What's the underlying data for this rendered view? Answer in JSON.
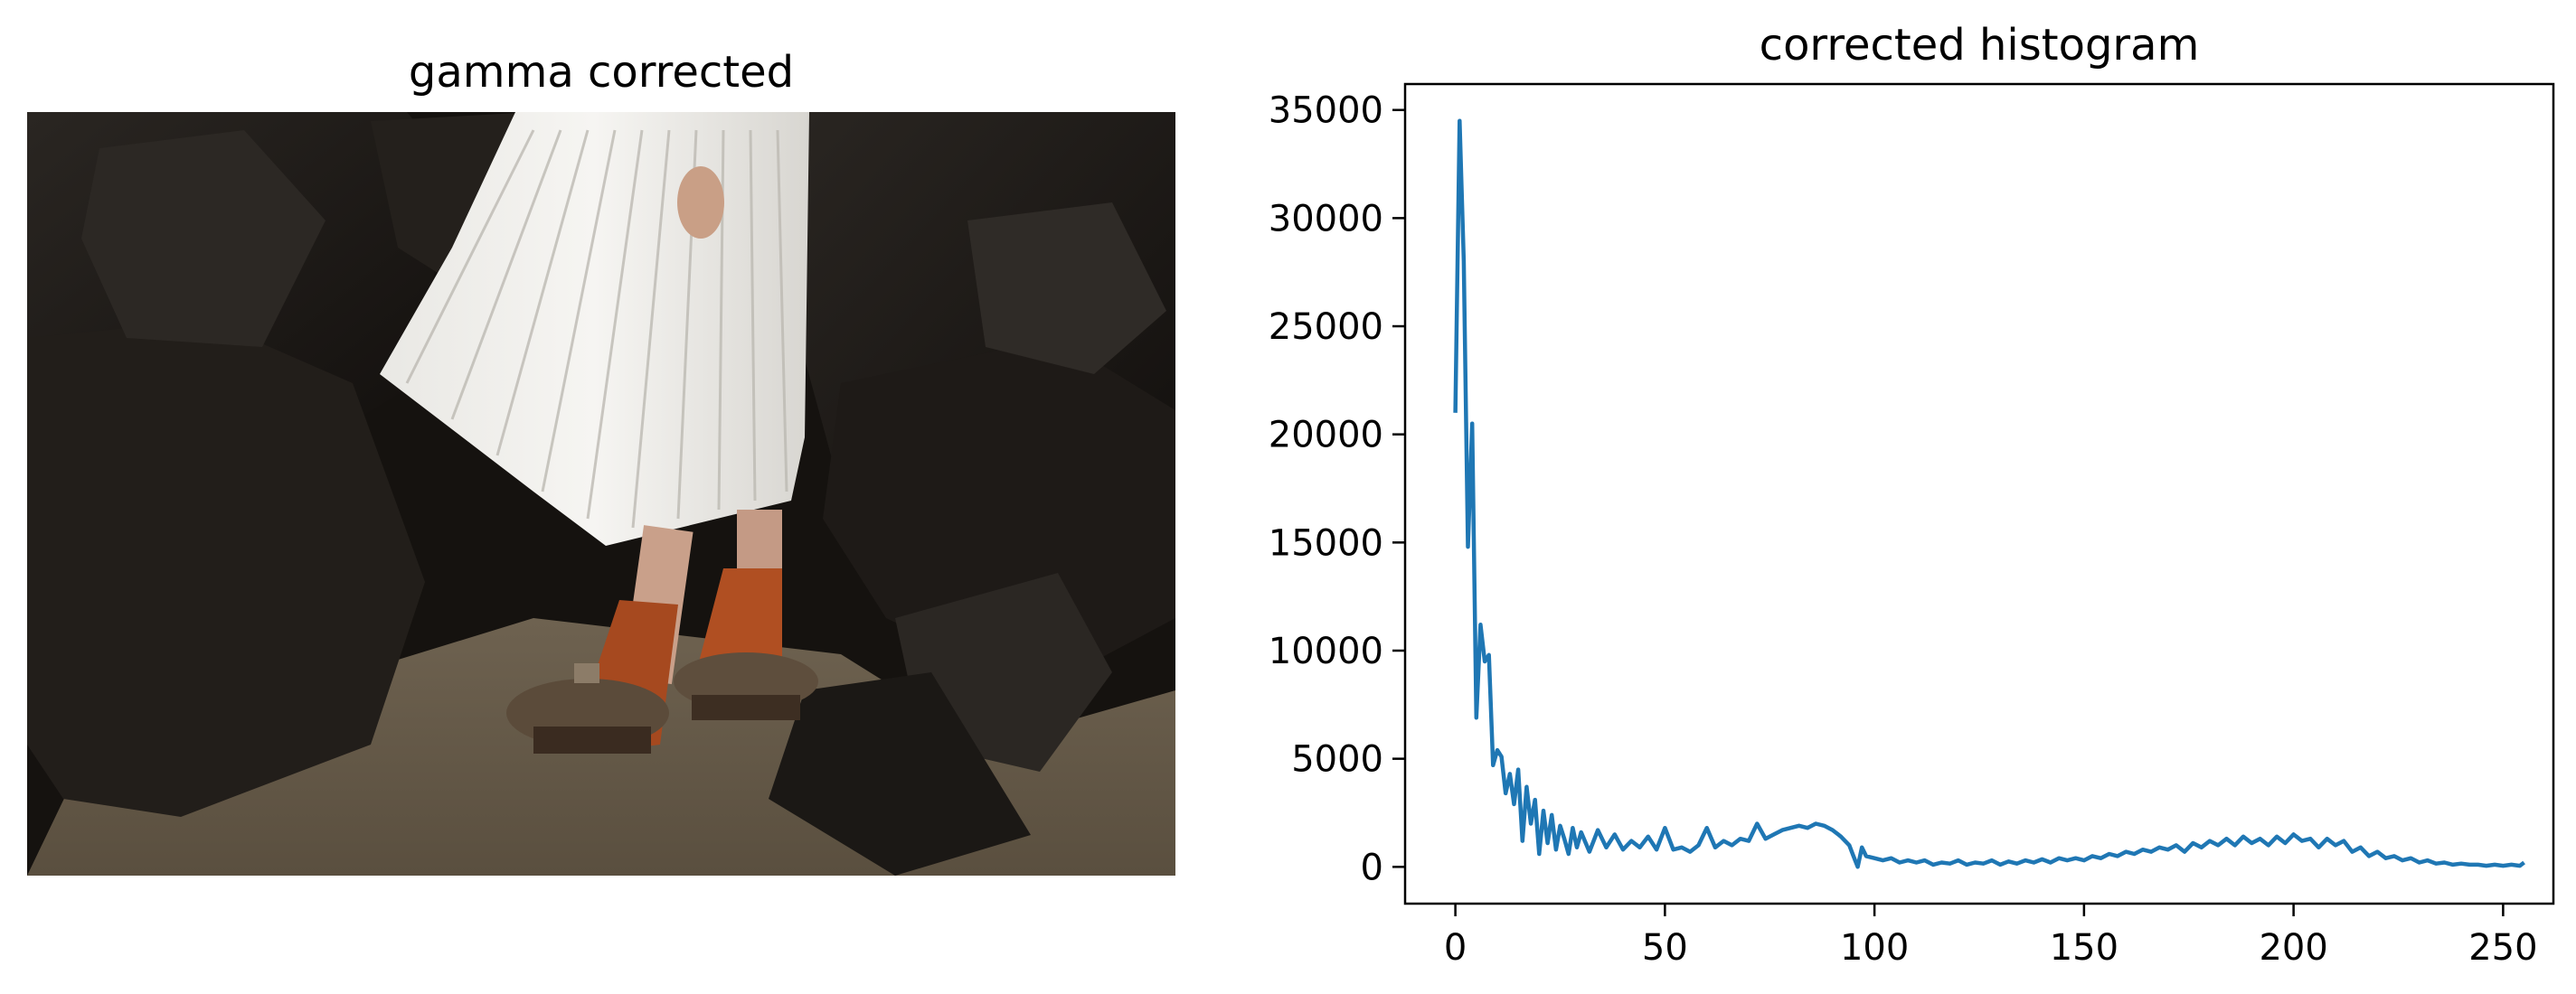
{
  "figure": {
    "left_panel": {
      "title": "gamma corrected",
      "image_alt": "woman in a white pleated skirt, orange socks and clogs standing on dark rocks and sand"
    },
    "colors": {
      "line": "#1f77b4",
      "axes": "#000000",
      "background": "#ffffff"
    }
  },
  "chart_data": {
    "type": "line",
    "title": "corrected histogram",
    "xlabel": "",
    "ylabel": "",
    "xlim": [
      -12,
      262
    ],
    "ylim": [
      -1700,
      36200
    ],
    "xticks": [
      0,
      50,
      100,
      150,
      200,
      250
    ],
    "yticks": [
      0,
      5000,
      10000,
      15000,
      20000,
      25000,
      30000,
      35000
    ],
    "grid": false,
    "legend": "none",
    "series": [
      {
        "x": [
          0,
          1,
          2,
          3,
          4,
          5,
          6,
          7,
          8,
          9,
          10,
          11,
          12,
          13,
          14,
          15,
          16,
          17,
          18,
          19,
          20,
          21,
          22,
          23,
          24,
          25,
          26,
          27,
          28,
          29,
          30,
          32,
          34,
          36,
          38,
          40,
          42,
          44,
          46,
          48,
          50,
          52,
          54,
          56,
          58,
          60,
          62,
          64,
          66,
          68,
          70,
          72,
          74,
          76,
          78,
          80,
          82,
          84,
          86,
          88,
          90,
          92,
          94,
          95,
          96,
          97,
          98,
          100,
          102,
          104,
          106,
          108,
          110,
          112,
          114,
          116,
          118,
          120,
          122,
          124,
          126,
          128,
          130,
          132,
          134,
          136,
          138,
          140,
          142,
          144,
          146,
          148,
          150,
          152,
          154,
          156,
          158,
          160,
          162,
          164,
          166,
          168,
          170,
          172,
          174,
          176,
          178,
          180,
          182,
          184,
          186,
          188,
          190,
          192,
          194,
          196,
          198,
          200,
          202,
          204,
          206,
          208,
          210,
          212,
          214,
          216,
          218,
          220,
          222,
          224,
          226,
          228,
          230,
          232,
          234,
          236,
          238,
          240,
          242,
          244,
          246,
          248,
          250,
          252,
          254,
          255
        ],
        "y": [
          21000,
          34500,
          28000,
          14800,
          20500,
          6900,
          11200,
          9500,
          9800,
          4700,
          5400,
          5100,
          3400,
          4300,
          2900,
          4500,
          1200,
          3700,
          2000,
          3100,
          600,
          2600,
          1100,
          2400,
          800,
          1900,
          1300,
          600,
          1800,
          900,
          1600,
          700,
          1700,
          900,
          1500,
          800,
          1200,
          900,
          1400,
          800,
          1800,
          800,
          900,
          700,
          1000,
          1800,
          900,
          1200,
          1000,
          1300,
          1200,
          2000,
          1300,
          1500,
          1700,
          1800,
          1900,
          1800,
          2000,
          1900,
          1700,
          1400,
          1000,
          500,
          0,
          900,
          500,
          400,
          300,
          400,
          200,
          300,
          200,
          300,
          100,
          200,
          150,
          300,
          100,
          200,
          150,
          300,
          100,
          250,
          150,
          300,
          200,
          350,
          200,
          400,
          300,
          400,
          300,
          500,
          400,
          600,
          500,
          700,
          600,
          800,
          700,
          900,
          800,
          1000,
          700,
          1100,
          900,
          1200,
          1000,
          1300,
          1000,
          1400,
          1100,
          1300,
          1000,
          1400,
          1100,
          1500,
          1200,
          1300,
          900,
          1300,
          1000,
          1200,
          700,
          900,
          500,
          700,
          400,
          500,
          300,
          400,
          200,
          300,
          150,
          200,
          100,
          150,
          100,
          100,
          50,
          100,
          50,
          100,
          50,
          200
        ]
      }
    ]
  }
}
